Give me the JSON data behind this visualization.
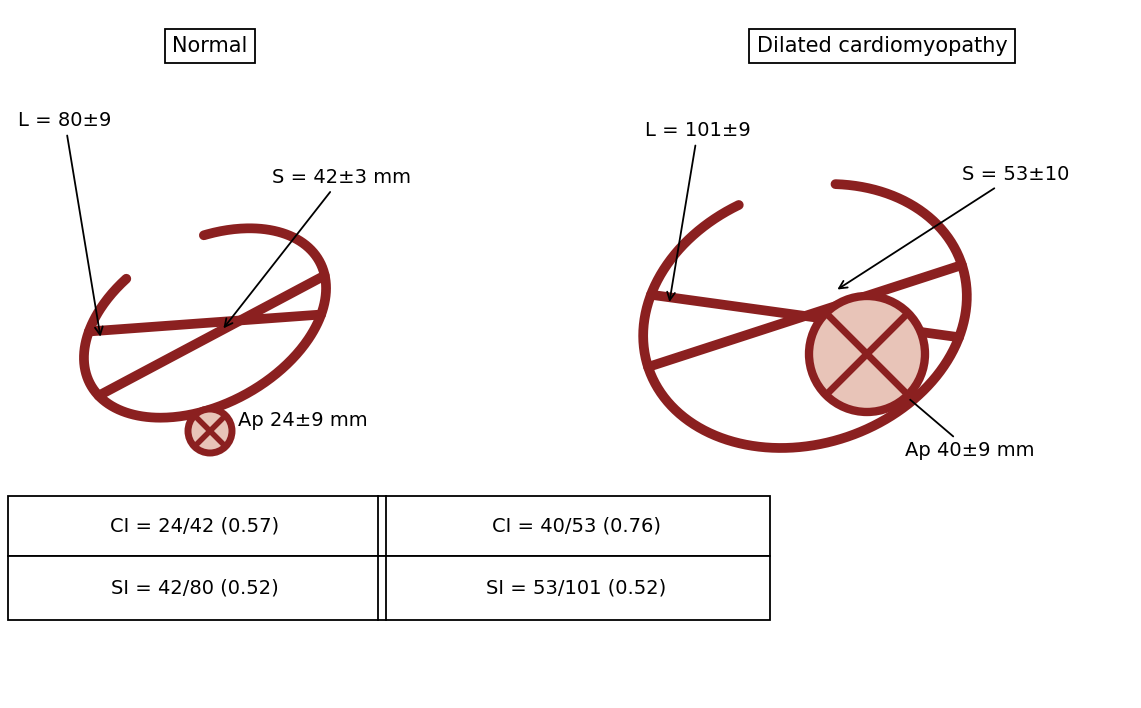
{
  "bg_color": "#ffffff",
  "heart_color": "#8B2020",
  "apex_fill_color": "#E8C4B8",
  "text_color": "#000000",
  "normal_title": "Normal",
  "dilated_title": "Dilated cardiomyopathy",
  "normal_L": "L = 80±9",
  "normal_S": "S = 42±3 mm",
  "normal_Ap": "Ap 24±9 mm",
  "dilated_L": "L = 101±9",
  "dilated_S": "S = 53±10",
  "dilated_Ap": "Ap 40±9 mm",
  "table_row1_col1": "CI = 24/42 (0.57)",
  "table_row1_col2": "CI = 40/53 (0.76)",
  "table_row2_col1": "SI = 42/80 (0.52)",
  "table_row2_col2": "SI = 53/101 (0.52)",
  "line_width": 7.0,
  "font_size_title": 15,
  "font_size_label": 14,
  "font_size_table": 14
}
